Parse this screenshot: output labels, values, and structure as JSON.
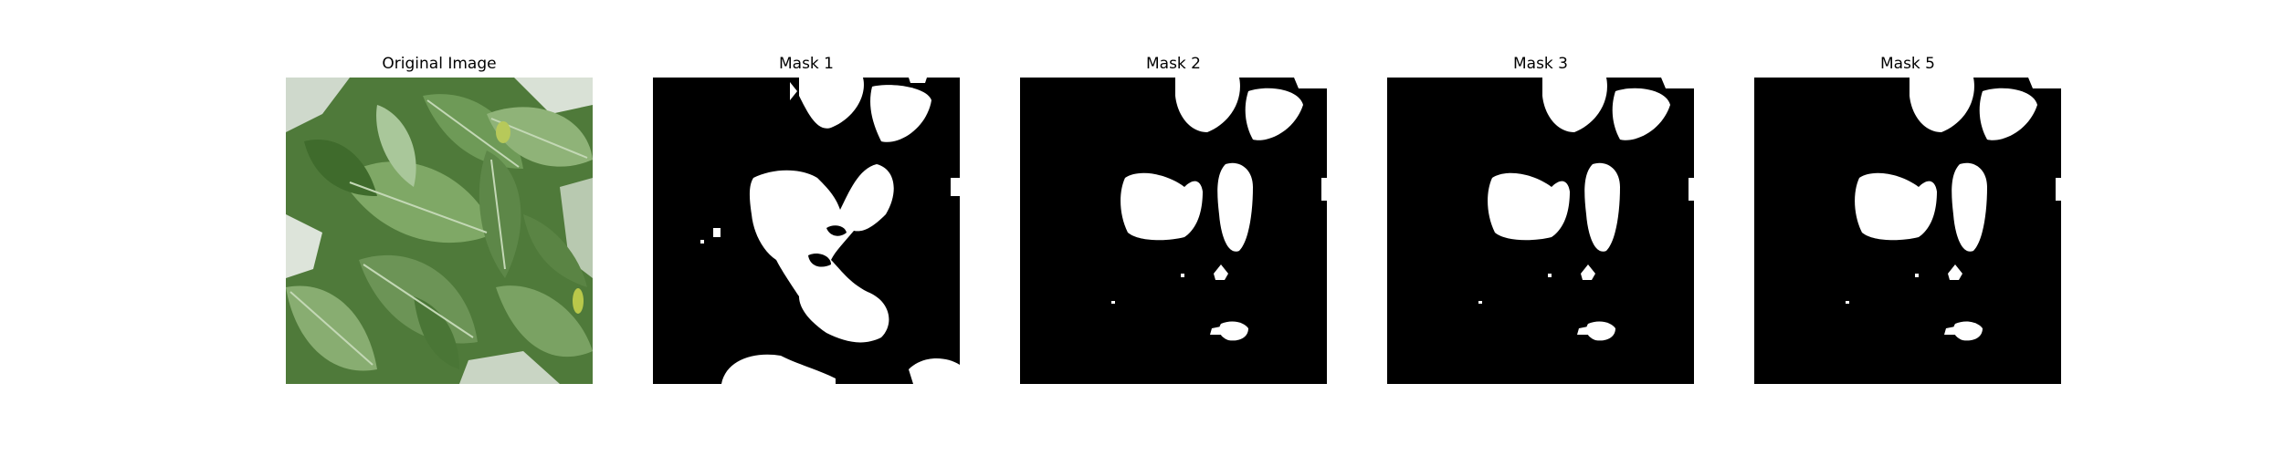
{
  "figure": {
    "panels": [
      {
        "title": "Original Image",
        "kind": "photo"
      },
      {
        "title": "Mask 1",
        "kind": "mask"
      },
      {
        "title": "Mask 2",
        "kind": "mask"
      },
      {
        "title": "Mask 3",
        "kind": "mask"
      },
      {
        "title": "Mask 5",
        "kind": "mask"
      }
    ]
  },
  "colors": {
    "mask_background": "#000000",
    "mask_foreground": "#ffffff",
    "leaf_dark": "#3f6b2c",
    "leaf_mid": "#6e9a57",
    "leaf_light": "#a9c79a",
    "sky": "#dfe6df"
  }
}
